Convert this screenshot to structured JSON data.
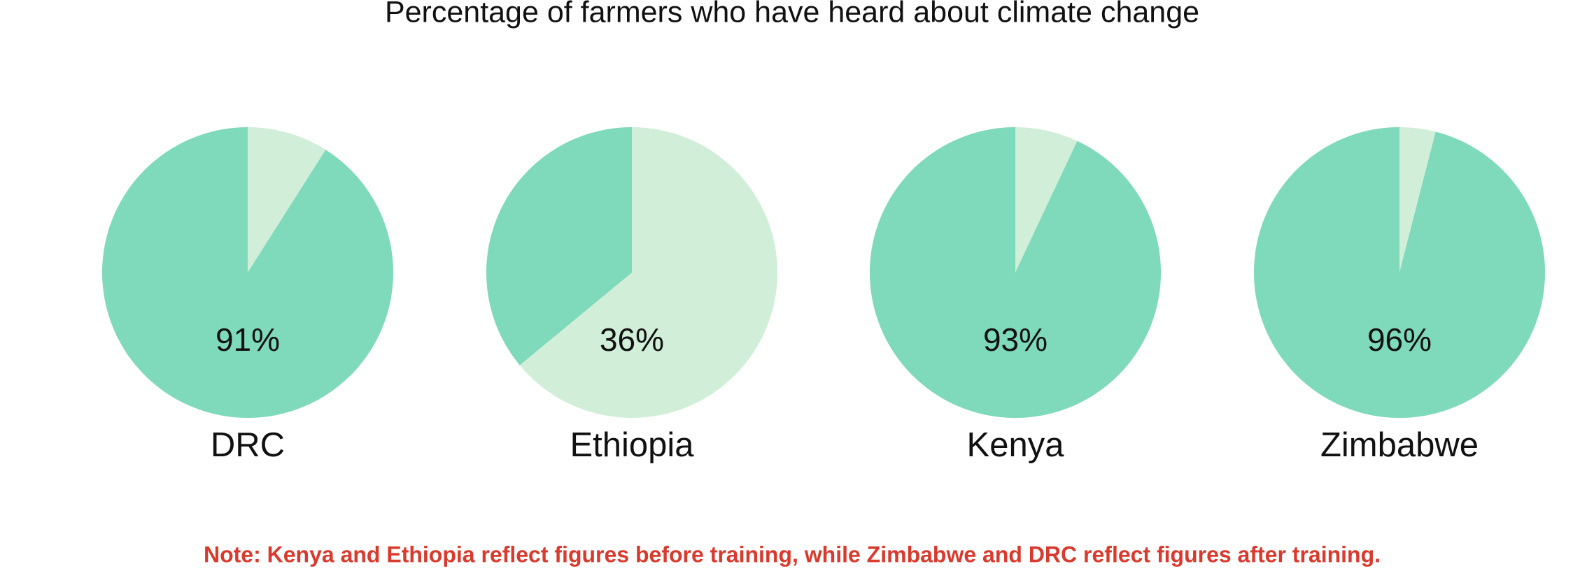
{
  "chart_data": {
    "type": "pie",
    "title": "Percentage of farmers who have heard about climate change",
    "categories": [
      "DRC",
      "Ethiopia",
      "Kenya",
      "Zimbabwe"
    ],
    "values": [
      91,
      36,
      93,
      96
    ],
    "value_labels": [
      "91%",
      "36%",
      "93%",
      "96%"
    ],
    "color": "#7fd9bb",
    "remainder_color": "#d0eed8",
    "note": "Note: Kenya and Ethiopia reflect figures before training, while Zimbabwe and DRC reflect figures after training."
  }
}
